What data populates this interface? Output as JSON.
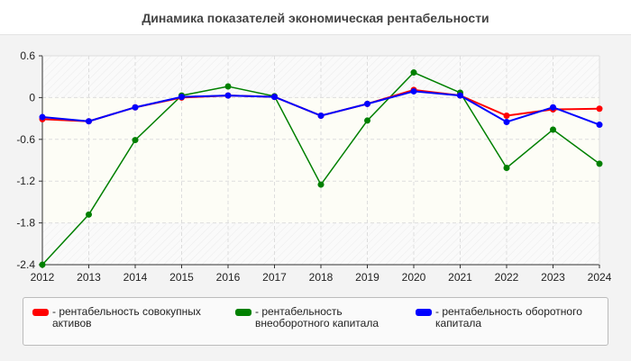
{
  "chart_data": {
    "type": "line",
    "title": "Динамика показателей экономическая рентабельности",
    "x": [
      "2012",
      "2013",
      "2014",
      "2015",
      "2016",
      "2017",
      "2018",
      "2019",
      "2020",
      "2021",
      "2022",
      "2023",
      "2024"
    ],
    "ylim": [
      -2.4,
      0.6
    ],
    "yticks": [
      "0.6",
      "0",
      "-0.6",
      "-1.2",
      "-1.8",
      "-2.4"
    ],
    "grid": true,
    "legend_position": "bottom",
    "series": [
      {
        "name": "- рентабельность совокупных активов",
        "color": "#ff0000",
        "values": [
          -0.31,
          -0.34,
          -0.14,
          0.0,
          0.03,
          0.01,
          -0.26,
          -0.09,
          0.11,
          0.03,
          -0.26,
          -0.17,
          -0.16
        ]
      },
      {
        "name": "- рентабельность внеоборотного капитала",
        "color": "#008000",
        "values": [
          -2.4,
          -1.68,
          -0.61,
          0.03,
          0.16,
          0.02,
          -1.25,
          -0.33,
          0.36,
          0.07,
          -1.01,
          -0.46,
          -0.95
        ]
      },
      {
        "name": "- рентабельность оборотного капитала",
        "color": "#0000ff",
        "values": [
          -0.28,
          -0.34,
          -0.14,
          0.01,
          0.03,
          0.01,
          -0.26,
          -0.09,
          0.09,
          0.03,
          -0.35,
          -0.14,
          -0.39
        ]
      }
    ]
  }
}
